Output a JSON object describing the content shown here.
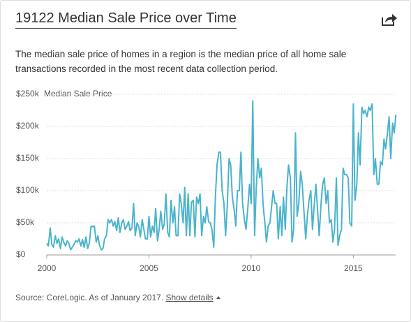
{
  "header": {
    "title": "19122 Median Sale Price over Time",
    "description": "The median sale price of homes in a region is the median price of all home sale transactions recorded in the most recent data collection period."
  },
  "chart_data": {
    "type": "line",
    "y_label": "Median Sale Price",
    "color": "#4bb3cc",
    "grid": true,
    "xlim": [
      2000,
      2017.07
    ],
    "xticks": [
      2000,
      2005,
      2010,
      2015
    ],
    "ylim": [
      0,
      250000
    ],
    "yticks": [
      {
        "value": 0,
        "label": "$0"
      },
      {
        "value": 50000,
        "label": "$50k"
      },
      {
        "value": 100000,
        "label": "$100k"
      },
      {
        "value": 150000,
        "label": "$150k"
      },
      {
        "value": 200000,
        "label": "$200k"
      },
      {
        "value": 250000,
        "label": "$250k"
      }
    ],
    "x": [
      2000,
      2000.08,
      2000.17,
      2000.25,
      2000.33,
      2000.42,
      2000.5,
      2000.58,
      2000.67,
      2000.75,
      2000.83,
      2000.92,
      2001,
      2001.08,
      2001.17,
      2001.25,
      2001.33,
      2001.42,
      2001.5,
      2001.58,
      2001.67,
      2001.75,
      2001.83,
      2001.92,
      2002,
      2002.08,
      2002.17,
      2002.25,
      2002.33,
      2002.42,
      2002.5,
      2002.58,
      2002.67,
      2002.75,
      2002.83,
      2002.92,
      2003,
      2003.08,
      2003.17,
      2003.25,
      2003.33,
      2003.42,
      2003.5,
      2003.58,
      2003.67,
      2003.75,
      2003.83,
      2003.92,
      2004,
      2004.08,
      2004.17,
      2004.25,
      2004.33,
      2004.42,
      2004.5,
      2004.58,
      2004.67,
      2004.75,
      2004.83,
      2004.92,
      2005,
      2005.08,
      2005.17,
      2005.25,
      2005.33,
      2005.42,
      2005.5,
      2005.58,
      2005.67,
      2005.75,
      2005.83,
      2005.92,
      2006,
      2006.08,
      2006.17,
      2006.25,
      2006.33,
      2006.42,
      2006.5,
      2006.58,
      2006.67,
      2006.75,
      2006.83,
      2006.92,
      2007,
      2007.08,
      2007.17,
      2007.25,
      2007.33,
      2007.42,
      2007.5,
      2007.58,
      2007.67,
      2007.75,
      2007.83,
      2007.92,
      2008,
      2008.08,
      2008.17,
      2008.25,
      2008.33,
      2008.42,
      2008.5,
      2008.58,
      2008.67,
      2008.75,
      2008.83,
      2008.92,
      2009,
      2009.08,
      2009.17,
      2009.25,
      2009.33,
      2009.42,
      2009.5,
      2009.58,
      2009.67,
      2009.75,
      2009.83,
      2009.92,
      2010,
      2010.08,
      2010.17,
      2010.25,
      2010.33,
      2010.42,
      2010.5,
      2010.58,
      2010.67,
      2010.75,
      2010.83,
      2010.92,
      2011,
      2011.08,
      2011.17,
      2011.25,
      2011.33,
      2011.42,
      2011.5,
      2011.58,
      2011.67,
      2011.75,
      2011.83,
      2011.92,
      2012,
      2012.08,
      2012.17,
      2012.25,
      2012.33,
      2012.42,
      2012.5,
      2012.58,
      2012.67,
      2012.75,
      2012.83,
      2012.92,
      2013,
      2013.08,
      2013.17,
      2013.25,
      2013.33,
      2013.42,
      2013.5,
      2013.58,
      2013.67,
      2013.75,
      2013.83,
      2013.92,
      2014,
      2014.08,
      2014.17,
      2014.25,
      2014.33,
      2014.42,
      2014.5,
      2014.58,
      2014.67,
      2014.75,
      2014.83,
      2014.92,
      2015,
      2015.08,
      2015.17,
      2015.25,
      2015.33,
      2015.42,
      2015.5,
      2015.58,
      2015.67,
      2015.75,
      2015.83,
      2015.92,
      2016,
      2016.08,
      2016.17,
      2016.25,
      2016.33,
      2016.42,
      2016.5,
      2016.58,
      2016.67,
      2016.75,
      2016.83,
      2016.92,
      2017,
      2017.08
    ],
    "values": [
      18000,
      14000,
      42000,
      16000,
      12000,
      30000,
      18000,
      25000,
      10000,
      28000,
      20000,
      14000,
      22000,
      18000,
      8000,
      12000,
      16000,
      22000,
      20000,
      25000,
      14000,
      24000,
      12000,
      28000,
      10000,
      18000,
      45000,
      44000,
      45000,
      20000,
      30000,
      15000,
      8000,
      10000,
      25000,
      30000,
      55000,
      50000,
      55000,
      45000,
      52000,
      38000,
      58000,
      35000,
      50000,
      55000,
      40000,
      45000,
      52000,
      38000,
      42000,
      80000,
      30000,
      50000,
      44000,
      28000,
      55000,
      40000,
      25000,
      25000,
      60000,
      28000,
      45000,
      35000,
      72000,
      22000,
      40000,
      68000,
      40000,
      48000,
      95000,
      35000,
      28000,
      85000,
      50000,
      75000,
      30000,
      30000,
      95000,
      80000,
      50000,
      105000,
      30000,
      95000,
      30000,
      82000,
      85000,
      28000,
      90000,
      80000,
      95000,
      30000,
      60000,
      50000,
      75000,
      52000,
      50000,
      40000,
      12000,
      90000,
      140000,
      160000,
      160000,
      100000,
      80000,
      30000,
      75000,
      150000,
      140000,
      90000,
      70000,
      45000,
      100000,
      100000,
      160000,
      80000,
      55000,
      40000,
      70000,
      110000,
      80000,
      240000,
      30000,
      105000,
      150000,
      120000,
      135000,
      80000,
      50000,
      20000,
      45000,
      50000,
      75000,
      100000,
      80000,
      80000,
      25000,
      75000,
      30000,
      90000,
      40000,
      105000,
      140000,
      120000,
      20000,
      40000,
      190000,
      60000,
      80000,
      130000,
      110000,
      70000,
      25000,
      60000,
      85000,
      100000,
      40000,
      75000,
      110000,
      70000,
      30000,
      80000,
      110000,
      120000,
      80000,
      100000,
      50000,
      55000,
      20000,
      40000,
      120000,
      15000,
      30000,
      40000,
      135000,
      125000,
      125000,
      120000,
      50000,
      45000,
      235000,
      85000,
      110000,
      190000,
      140000,
      230000,
      220000,
      225000,
      215000,
      230000,
      225000,
      235000,
      125000,
      150000,
      110000,
      110000,
      145000,
      140000,
      180000,
      165000,
      190000,
      215000,
      150000,
      205000,
      190000,
      218000
    ]
  },
  "footer": {
    "source": "Source: CoreLogic. As of January 2017.",
    "link": "Show details"
  }
}
